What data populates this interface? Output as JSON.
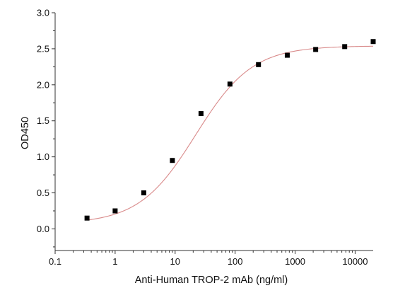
{
  "chart_data": {
    "type": "scatter",
    "xlabel": "Anti-Human TROP-2 mAb (ng/ml)",
    "ylabel": "OD450",
    "x_scale": "log",
    "xlim": [
      0.1,
      20000
    ],
    "ylim": [
      -0.3,
      3.0
    ],
    "x_ticks": [
      0.1,
      1,
      10,
      100,
      1000,
      10000
    ],
    "x_tick_labels": [
      "0.1",
      "1",
      "10",
      "100",
      "1000",
      "10000"
    ],
    "y_ticks": [
      0.0,
      0.5,
      1.0,
      1.5,
      2.0,
      2.5,
      3.0
    ],
    "y_tick_labels": [
      "0.0",
      "0.5",
      "1.0",
      "1.5",
      "2.0",
      "2.5",
      "3.0"
    ],
    "grid": false,
    "series": [
      {
        "marker": "square",
        "color": "#000000",
        "x": [
          0.34,
          1.0,
          3.0,
          9.0,
          27,
          82,
          245,
          740,
          2200,
          6700,
          20000
        ],
        "y": [
          0.15,
          0.25,
          0.5,
          0.95,
          1.6,
          2.01,
          2.28,
          2.41,
          2.49,
          2.53,
          2.6
        ]
      }
    ],
    "fit_curve": {
      "type": "4PL",
      "color": "#d98a8a",
      "bottom": 0.07,
      "top": 2.54,
      "ec50": 22,
      "hill": 0.92
    }
  }
}
